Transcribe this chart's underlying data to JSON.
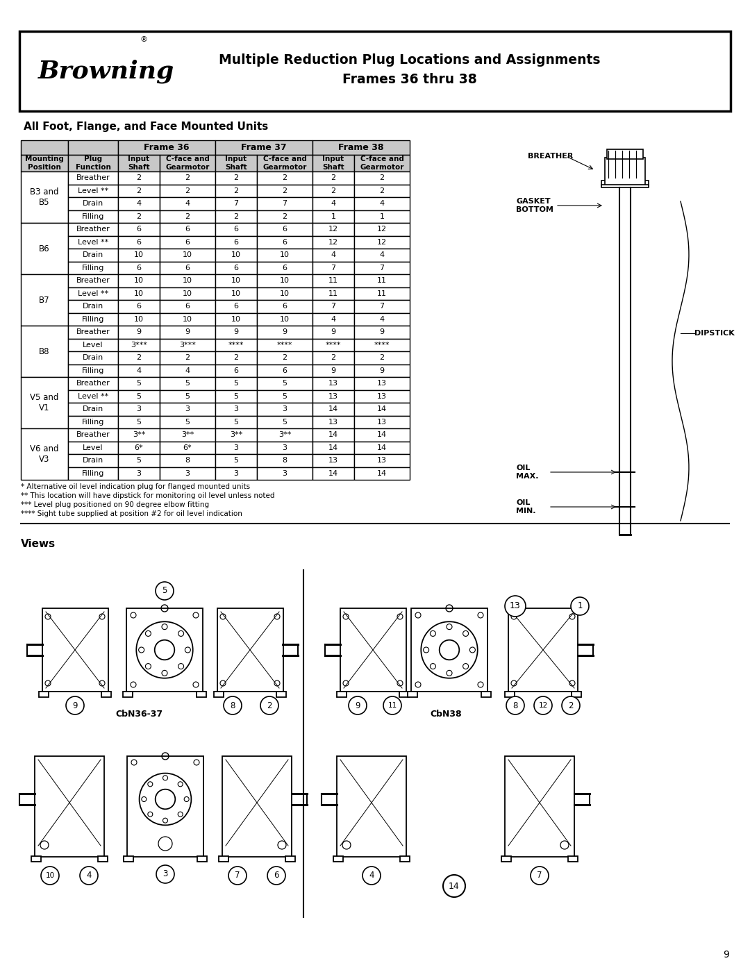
{
  "title_line1": "Multiple Reduction Plug Locations and Assignments",
  "title_line2": "Frames 36 thru 38",
  "section_title": "All Foot, Flange, and Face Mounted Units",
  "views_title": "Views",
  "row_groups": [
    {
      "group": "B3 and\nB5",
      "rows": [
        [
          "Breather",
          "2",
          "2",
          "2",
          "2",
          "2",
          "2"
        ],
        [
          "Level **",
          "2",
          "2",
          "2",
          "2",
          "2",
          "2"
        ],
        [
          "Drain",
          "4",
          "4",
          "7",
          "7",
          "4",
          "4"
        ],
        [
          "Filling",
          "2",
          "2",
          "2",
          "2",
          "1",
          "1"
        ]
      ]
    },
    {
      "group": "B6",
      "rows": [
        [
          "Breather",
          "6",
          "6",
          "6",
          "6",
          "12",
          "12"
        ],
        [
          "Level **",
          "6",
          "6",
          "6",
          "6",
          "12",
          "12"
        ],
        [
          "Drain",
          "10",
          "10",
          "10",
          "10",
          "4",
          "4"
        ],
        [
          "Filling",
          "6",
          "6",
          "6",
          "6",
          "7",
          "7"
        ]
      ]
    },
    {
      "group": "B7",
      "rows": [
        [
          "Breather",
          "10",
          "10",
          "10",
          "10",
          "11",
          "11"
        ],
        [
          "Level **",
          "10",
          "10",
          "10",
          "10",
          "11",
          "11"
        ],
        [
          "Drain",
          "6",
          "6",
          "6",
          "6",
          "7",
          "7"
        ],
        [
          "Filling",
          "10",
          "10",
          "10",
          "10",
          "4",
          "4"
        ]
      ]
    },
    {
      "group": "B8",
      "rows": [
        [
          "Breather",
          "9",
          "9",
          "9",
          "9",
          "9",
          "9"
        ],
        [
          "Level",
          "3***",
          "3***",
          "****",
          "****",
          "****",
          "****"
        ],
        [
          "Drain",
          "2",
          "2",
          "2",
          "2",
          "2",
          "2"
        ],
        [
          "Filling",
          "4",
          "4",
          "6",
          "6",
          "9",
          "9"
        ]
      ]
    },
    {
      "group": "V5 and\nV1",
      "rows": [
        [
          "Breather",
          "5",
          "5",
          "5",
          "5",
          "13",
          "13"
        ],
        [
          "Level **",
          "5",
          "5",
          "5",
          "5",
          "13",
          "13"
        ],
        [
          "Drain",
          "3",
          "3",
          "3",
          "3",
          "14",
          "14"
        ],
        [
          "Filling",
          "5",
          "5",
          "5",
          "5",
          "13",
          "13"
        ]
      ]
    },
    {
      "group": "V6 and\nV3",
      "rows": [
        [
          "Breather",
          "3**",
          "3**",
          "3**",
          "3**",
          "14",
          "14"
        ],
        [
          "Level",
          "6*",
          "6*",
          "3",
          "3",
          "14",
          "14"
        ],
        [
          "Drain",
          "5",
          "8",
          "5",
          "8",
          "13",
          "13"
        ],
        [
          "Filling",
          "3",
          "3",
          "3",
          "3",
          "14",
          "14"
        ]
      ]
    }
  ],
  "footnotes": [
    "* Alternative oil level indication plug for flanged mounted units",
    "** This location will have dipstick for monitoring oil level unless noted",
    "*** Level plug positioned on 90 degree elbow fitting",
    "**** Sight tube supplied at position #2 for oil level indication"
  ],
  "header_bg": "#c8c8c8",
  "bg_color": "#ffffff",
  "page_number": "9"
}
